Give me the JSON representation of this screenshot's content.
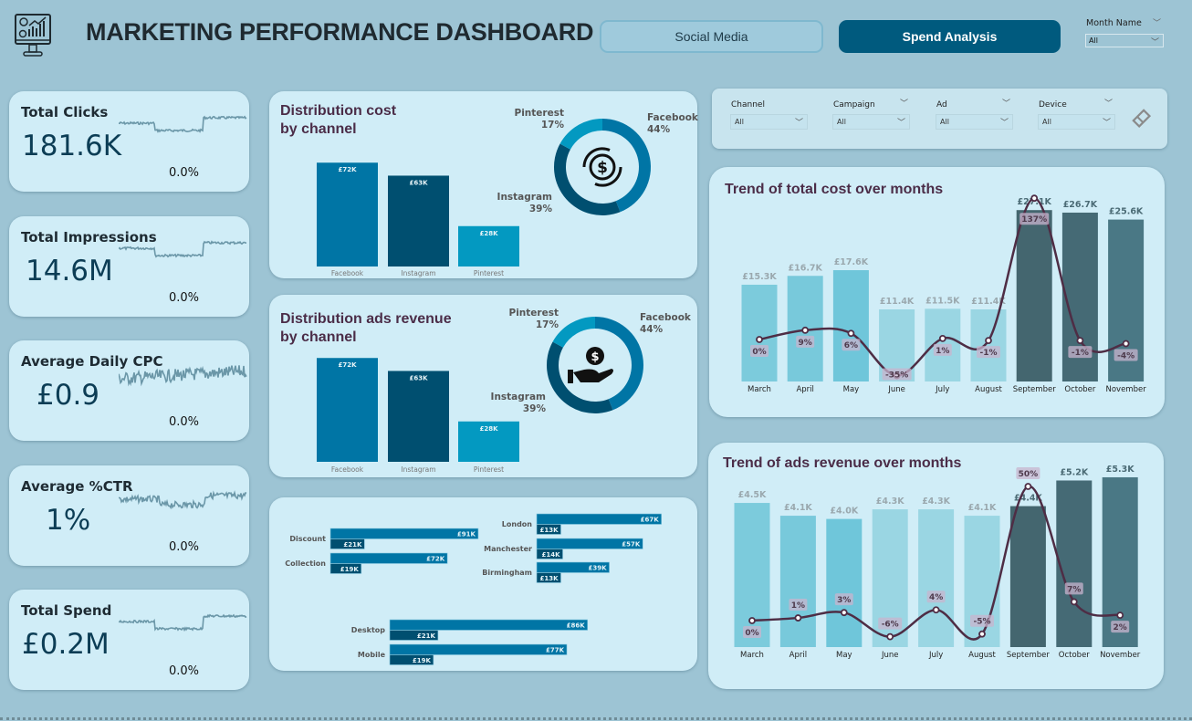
{
  "header": {
    "title": "MARKETING PERFORMANCE DASHBOARD",
    "logo_icon": "monitor-analytics-icon",
    "nav": [
      {
        "label": "Social Media",
        "active": false
      },
      {
        "label": "Spend Analysis",
        "active": true
      }
    ],
    "month_filter": {
      "label": "Month Name",
      "value": "All"
    }
  },
  "kpis": [
    {
      "title": "Total Clicks",
      "value": "181.6K",
      "change": "0.0%"
    },
    {
      "title": "Total Impressions",
      "value": "14.6M",
      "change": "0.0%"
    },
    {
      "title": "Average Daily CPC",
      "value": "£0.9",
      "change": "0.0%"
    },
    {
      "title": "Average %CTR",
      "value": "1%",
      "change": "0.0%"
    },
    {
      "title": "Total Spend",
      "value": "£0.2M",
      "change": "0.0%"
    }
  ],
  "filters": [
    {
      "label": "Channel",
      "value": "All"
    },
    {
      "label": "Campaign",
      "value": "All"
    },
    {
      "label": "Ad",
      "value": "All"
    },
    {
      "label": "Device",
      "value": "All"
    }
  ],
  "colors": {
    "facebook": "#0075a5",
    "instagram": "#004f70",
    "pinterest": "#0399c1",
    "line": "#4e2d45",
    "background": "#9dc4d4",
    "card": "#d0edf7"
  },
  "chart_data": [
    {
      "type": "bar",
      "title": "Distribution cost by channel",
      "categories": [
        "Facebook",
        "Instagram",
        "Pinterest"
      ],
      "values": [
        72,
        63,
        28
      ],
      "labels": [
        "£72K",
        "£63K",
        "£28K"
      ],
      "donut": {
        "categories": [
          "Facebook",
          "Instagram",
          "Pinterest"
        ],
        "percent": [
          44,
          39,
          17
        ],
        "labels": [
          "44%",
          "39%",
          "17%"
        ],
        "center_icon": "dollar-coin-icon"
      }
    },
    {
      "type": "bar",
      "title": "Distribution ads revenue by channel",
      "categories": [
        "Facebook",
        "Instagram",
        "Pinterest"
      ],
      "values": [
        72,
        63,
        28
      ],
      "labels": [
        "£72K",
        "£63K",
        "£28K"
      ],
      "donut": {
        "categories": [
          "Facebook",
          "Instagram",
          "Pinterest"
        ],
        "percent": [
          44,
          39,
          17
        ],
        "labels": [
          "44%",
          "39%",
          "17%"
        ],
        "center_icon": "hand-dollar-icon"
      }
    },
    {
      "type": "bar",
      "orientation": "horizontal",
      "groups": [
        {
          "categories": [
            "Discount",
            "Collection"
          ],
          "values_a": [
            91,
            72
          ],
          "labels_a": [
            "£91K",
            "£72K"
          ],
          "values_b": [
            21,
            19
          ],
          "labels_b": [
            "£21K",
            "£19K"
          ]
        },
        {
          "categories": [
            "London",
            "Manchester",
            "Birmingham"
          ],
          "values_a": [
            67,
            57,
            39
          ],
          "labels_a": [
            "£67K",
            "£57K",
            "£39K"
          ],
          "values_b": [
            13,
            14,
            13
          ],
          "labels_b": [
            "£13K",
            "£14K",
            "£13K"
          ]
        },
        {
          "categories": [
            "Desktop",
            "Mobile"
          ],
          "values_a": [
            86,
            77
          ],
          "labels_a": [
            "£86K",
            "£77K"
          ],
          "values_b": [
            21,
            19
          ],
          "labels_b": [
            "£21K",
            "£19K"
          ]
        }
      ]
    },
    {
      "type": "bar+line",
      "title": "Trend of total cost over months",
      "categories": [
        "March",
        "April",
        "May",
        "June",
        "July",
        "August",
        "September",
        "October",
        "November"
      ],
      "values": [
        15.3,
        16.7,
        17.6,
        11.4,
        11.5,
        11.4,
        27.1,
        26.7,
        25.6
      ],
      "labels": [
        "£15.3K",
        "£16.7K",
        "£17.6K",
        "£11.4K",
        "£11.5K",
        "£11.4K",
        "£27.1K",
        "£26.7K",
        "£25.6K"
      ],
      "line_values": [
        0,
        9,
        6,
        -35,
        1,
        -1,
        137,
        -1,
        -4
      ],
      "line_labels": [
        "0%",
        "9%",
        "6%",
        "-35%",
        "1%",
        "-1%",
        "137%",
        "-1%",
        "-4%"
      ]
    },
    {
      "type": "bar+line",
      "title": "Trend of ads revenue over months",
      "categories": [
        "March",
        "April",
        "May",
        "June",
        "July",
        "August",
        "September",
        "October",
        "November"
      ],
      "values": [
        4.5,
        4.1,
        4.0,
        4.3,
        4.3,
        4.1,
        4.4,
        5.2,
        5.3
      ],
      "labels": [
        "£4.5K",
        "£4.1K",
        "£4.0K",
        "£4.3K",
        "£4.3K",
        "£4.1K",
        "£4.4K",
        "£5.2K",
        "£5.3K"
      ],
      "line_values": [
        0,
        1,
        3,
        -6,
        4,
        -5,
        50,
        7,
        2
      ],
      "line_labels": [
        "0%",
        "1%",
        "3%",
        "-6%",
        "4%",
        "-5%",
        "50%",
        "7%",
        "2%"
      ]
    }
  ]
}
